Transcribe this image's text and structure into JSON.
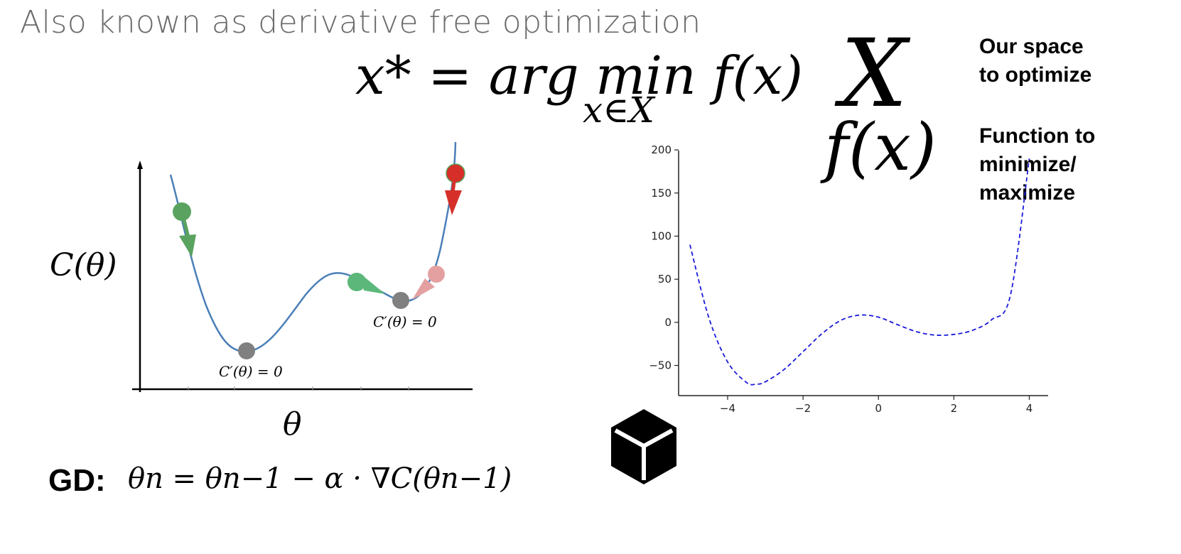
{
  "slide": {
    "subtitle": "Also known as derivative free optimization",
    "argmin_equation": "x* = arg min f(x)",
    "argmin_subscript": "x∈X",
    "big_x": "X",
    "fx_symbol": "f(x)",
    "space_label": [
      "Our space",
      "to optimize"
    ],
    "function_label": [
      "Function to",
      "minimize/",
      "maximize"
    ],
    "gd_label": "GD:",
    "gd_equation": "θn = θn−1 − α · ∇C(θn−1)"
  },
  "left_diagram": {
    "y_label": "C(θ)",
    "x_label": "θ",
    "stationary_labels": [
      "C′(θ) = 0",
      "C′(θ) = 0"
    ],
    "ball_colors": {
      "green": "#5aa25f",
      "green_light": "#5cb87a",
      "red": "#d62f2a",
      "pink": "#e4a0a0",
      "gray": "#808080"
    },
    "curve_color": "#4a7fb8"
  },
  "icons": {
    "cube": "black-box-cube-icon"
  },
  "chart_data": {
    "type": "line",
    "title": "",
    "xlabel": "",
    "ylabel": "",
    "xlim": [
      -5.3,
      4.5
    ],
    "ylim": [
      -85,
      205
    ],
    "xticks": [
      -4,
      -2,
      0,
      2,
      4
    ],
    "yticks": [
      -50,
      0,
      50,
      100,
      150,
      200
    ],
    "line_style": "dashed",
    "line_color": "#1a1adb",
    "series": [
      {
        "x": [
          -5,
          -4.5,
          -4,
          -3.5,
          -3.25,
          -3,
          -2.5,
          -2,
          -1.5,
          -1,
          -0.5,
          0,
          0.5,
          1,
          1.5,
          2,
          2.5,
          3,
          3.5,
          4
        ],
        "values": [
          90,
          5.6,
          -46,
          -69.7,
          -71.8,
          -69,
          -54.6,
          -34,
          -13.3,
          2.25,
          8.4,
          6,
          -2.6,
          -10.75,
          -14.8,
          -14,
          -9.2,
          3,
          31.4,
          190
        ]
      }
    ]
  }
}
